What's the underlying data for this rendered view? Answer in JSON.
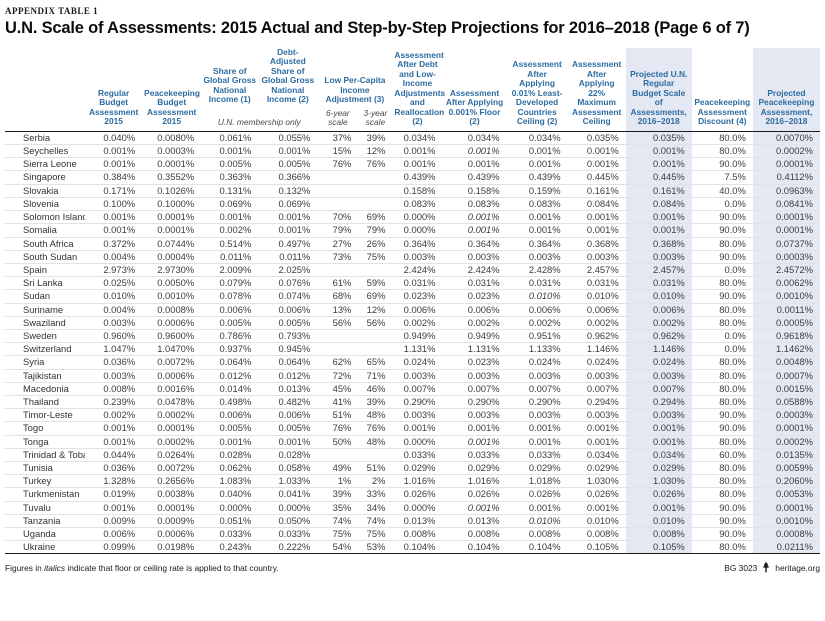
{
  "page": {
    "eyebrow": "APPENDIX TABLE 1",
    "title": "U.N. Scale of Assessments: 2015 Actual and Step-by-Step Projections for 2016–2018 (Page 6 of 7)",
    "footnote": {
      "pre": "Figures in ",
      "italic": "italics",
      "post": " indicate that floor or ceiling rate is applied to that country."
    },
    "footer_right": {
      "doc_id": "BG 3023",
      "site": "heritage.org"
    },
    "colors": {
      "header_blue": "#2d6ca2",
      "highlight_band": "#e4e8f2",
      "rule_black": "#1a1a1a",
      "row_divider": "#e2e2e2"
    }
  },
  "table": {
    "headers": [
      "",
      "Regular Budget Assessment 2015",
      "Peacekeeping Budget Assessment 2015",
      "Share of Global Gross National Income (1)",
      "Debt-Adjusted Share of Global Gross National Income (2)",
      "Low Per-Capita Income Adjustment (3)",
      "Assessment After Debt and Low-Income Adjustments and Reallocation (2)",
      "Assessment After Applying 0.001% Floor (2)",
      "Assessment After Applying 0.01% Least-Developed Countries Ceiling (2)",
      "Assessment After Applying 22% Maximum Assessment Ceiling",
      "Projected U.N. Regular Budget Scale of Assessments, 2016–2018",
      "Peacekeeping Assessment Discount (4)",
      "Projected Peacekeeping Assessment, 2016–2018"
    ],
    "subheaders": {
      "membership_note": "U.N. membership only",
      "six_year": "6-year scale",
      "three_year": "3-year scale"
    },
    "highlight_cols": [
      11,
      13
    ],
    "italic_cells": [
      [
        1,
        8
      ],
      [
        6,
        8
      ],
      [
        7,
        8
      ],
      [
        12,
        9
      ],
      [
        23,
        8
      ],
      [
        28,
        8
      ],
      [
        29,
        9
      ]
    ],
    "rows": [
      [
        "Serbia",
        "0.040%",
        "0.0080%",
        "0.061%",
        "0.055%",
        "37%",
        "39%",
        "0.034%",
        "0.034%",
        "0.034%",
        "0.035%",
        "0.035%",
        "80.0%",
        "0.0070%"
      ],
      [
        "Seychelles",
        "0.001%",
        "0.0003%",
        "0.001%",
        "0.001%",
        "15%",
        "12%",
        "0.001%",
        "0.001%",
        "0.001%",
        "0.001%",
        "0.001%",
        "80.0%",
        "0.0002%"
      ],
      [
        "Sierra Leone",
        "0.001%",
        "0.0001%",
        "0.005%",
        "0.005%",
        "76%",
        "76%",
        "0.001%",
        "0.001%",
        "0.001%",
        "0.001%",
        "0.001%",
        "90.0%",
        "0.0001%"
      ],
      [
        "Singapore",
        "0.384%",
        "0.3552%",
        "0.363%",
        "0.366%",
        "",
        "",
        "0.439%",
        "0.439%",
        "0.439%",
        "0.445%",
        "0.445%",
        "7.5%",
        "0.4112%"
      ],
      [
        "Slovakia",
        "0.171%",
        "0.1026%",
        "0.131%",
        "0.132%",
        "",
        "",
        "0.158%",
        "0.158%",
        "0.159%",
        "0.161%",
        "0.161%",
        "40.0%",
        "0.0963%"
      ],
      [
        "Slovenia",
        "0.100%",
        "0.1000%",
        "0.069%",
        "0.069%",
        "",
        "",
        "0.083%",
        "0.083%",
        "0.083%",
        "0.084%",
        "0.084%",
        "0.0%",
        "0.0841%"
      ],
      [
        "Solomon Islands",
        "0.001%",
        "0.0001%",
        "0.001%",
        "0.001%",
        "70%",
        "69%",
        "0.000%",
        "0.001%",
        "0.001%",
        "0.001%",
        "0.001%",
        "90.0%",
        "0.0001%"
      ],
      [
        "Somalia",
        "0.001%",
        "0.0001%",
        "0.002%",
        "0.001%",
        "79%",
        "79%",
        "0.000%",
        "0.001%",
        "0.001%",
        "0.001%",
        "0.001%",
        "90.0%",
        "0.0001%"
      ],
      [
        "South Africa",
        "0.372%",
        "0.0744%",
        "0.514%",
        "0.497%",
        "27%",
        "26%",
        "0.364%",
        "0.364%",
        "0.364%",
        "0.368%",
        "0.368%",
        "80.0%",
        "0.0737%"
      ],
      [
        "South Sudan",
        "0.004%",
        "0.0004%",
        "0.011%",
        "0.011%",
        "73%",
        "75%",
        "0.003%",
        "0.003%",
        "0.003%",
        "0.003%",
        "0.003%",
        "90.0%",
        "0.0003%"
      ],
      [
        "Spain",
        "2.973%",
        "2.9730%",
        "2.009%",
        "2.025%",
        "",
        "",
        "2.424%",
        "2.424%",
        "2.428%",
        "2.457%",
        "2.457%",
        "0.0%",
        "2.4572%"
      ],
      [
        "Sri Lanka",
        "0.025%",
        "0.0050%",
        "0.079%",
        "0.076%",
        "61%",
        "59%",
        "0.031%",
        "0.031%",
        "0.031%",
        "0.031%",
        "0.031%",
        "80.0%",
        "0.0062%"
      ],
      [
        "Sudan",
        "0.010%",
        "0.0010%",
        "0.078%",
        "0.074%",
        "68%",
        "69%",
        "0.023%",
        "0.023%",
        "0.010%",
        "0.010%",
        "0.010%",
        "90.0%",
        "0.0010%"
      ],
      [
        "Suriname",
        "0.004%",
        "0.0008%",
        "0.006%",
        "0.006%",
        "13%",
        "12%",
        "0.006%",
        "0.006%",
        "0.006%",
        "0.006%",
        "0.006%",
        "80.0%",
        "0.0011%"
      ],
      [
        "Swaziland",
        "0.003%",
        "0.0006%",
        "0.005%",
        "0.005%",
        "56%",
        "56%",
        "0.002%",
        "0.002%",
        "0.002%",
        "0.002%",
        "0.002%",
        "80.0%",
        "0.0005%"
      ],
      [
        "Sweden",
        "0.960%",
        "0.9600%",
        "0.786%",
        "0.793%",
        "",
        "",
        "0.949%",
        "0.949%",
        "0.951%",
        "0.962%",
        "0.962%",
        "0.0%",
        "0.9618%"
      ],
      [
        "Switzerland",
        "1.047%",
        "1.0470%",
        "0.937%",
        "0.945%",
        "",
        "",
        "1.131%",
        "1.131%",
        "1.133%",
        "1.146%",
        "1.146%",
        "0.0%",
        "1.1462%"
      ],
      [
        "Syria",
        "0.036%",
        "0.0072%",
        "0.064%",
        "0.064%",
        "62%",
        "65%",
        "0.024%",
        "0.023%",
        "0.024%",
        "0.024%",
        "0.024%",
        "80.0%",
        "0.0048%"
      ],
      [
        "Tajikistan",
        "0.003%",
        "0.0006%",
        "0.012%",
        "0.012%",
        "72%",
        "71%",
        "0.003%",
        "0.003%",
        "0.003%",
        "0.003%",
        "0.003%",
        "80.0%",
        "0.0007%"
      ],
      [
        "Macedonia",
        "0.008%",
        "0.0016%",
        "0.014%",
        "0.013%",
        "45%",
        "46%",
        "0.007%",
        "0.007%",
        "0.007%",
        "0.007%",
        "0.007%",
        "80.0%",
        "0.0015%"
      ],
      [
        "Thailand",
        "0.239%",
        "0.0478%",
        "0.498%",
        "0.482%",
        "41%",
        "39%",
        "0.290%",
        "0.290%",
        "0.290%",
        "0.294%",
        "0.294%",
        "80.0%",
        "0.0588%"
      ],
      [
        "Timor-Leste",
        "0.002%",
        "0.0002%",
        "0.006%",
        "0.006%",
        "51%",
        "48%",
        "0.003%",
        "0.003%",
        "0.003%",
        "0.003%",
        "0.003%",
        "90.0%",
        "0.0003%"
      ],
      [
        "Togo",
        "0.001%",
        "0.0001%",
        "0.005%",
        "0.005%",
        "76%",
        "76%",
        "0.001%",
        "0.001%",
        "0.001%",
        "0.001%",
        "0.001%",
        "90.0%",
        "0.0001%"
      ],
      [
        "Tonga",
        "0.001%",
        "0.0002%",
        "0.001%",
        "0.001%",
        "50%",
        "48%",
        "0.000%",
        "0.001%",
        "0.001%",
        "0.001%",
        "0.001%",
        "80.0%",
        "0.0002%"
      ],
      [
        "Trinidad & Tobago",
        "0.044%",
        "0.0264%",
        "0.028%",
        "0.028%",
        "",
        "",
        "0.033%",
        "0.033%",
        "0.033%",
        "0.034%",
        "0.034%",
        "60.0%",
        "0.0135%"
      ],
      [
        "Tunisia",
        "0.036%",
        "0.0072%",
        "0.062%",
        "0.058%",
        "49%",
        "51%",
        "0.029%",
        "0.029%",
        "0.029%",
        "0.029%",
        "0.029%",
        "80.0%",
        "0.0059%"
      ],
      [
        "Turkey",
        "1.328%",
        "0.2656%",
        "1.083%",
        "1.033%",
        "1%",
        "2%",
        "1.016%",
        "1.016%",
        "1.018%",
        "1.030%",
        "1.030%",
        "80.0%",
        "0.2060%"
      ],
      [
        "Turkmenistan",
        "0.019%",
        "0.0038%",
        "0.040%",
        "0.041%",
        "39%",
        "33%",
        "0.026%",
        "0.026%",
        "0.026%",
        "0.026%",
        "0.026%",
        "80.0%",
        "0.0053%"
      ],
      [
        "Tuvalu",
        "0.001%",
        "0.0001%",
        "0.000%",
        "0.000%",
        "35%",
        "34%",
        "0.000%",
        "0.001%",
        "0.001%",
        "0.001%",
        "0.001%",
        "90.0%",
        "0.0001%"
      ],
      [
        "Tanzania",
        "0.009%",
        "0.0009%",
        "0.051%",
        "0.050%",
        "74%",
        "74%",
        "0.013%",
        "0.013%",
        "0.010%",
        "0.010%",
        "0.010%",
        "90.0%",
        "0.0010%"
      ],
      [
        "Uganda",
        "0.006%",
        "0.0006%",
        "0.033%",
        "0.033%",
        "75%",
        "75%",
        "0.008%",
        "0.008%",
        "0.008%",
        "0.008%",
        "0.008%",
        "90.0%",
        "0.0008%"
      ],
      [
        "Ukraine",
        "0.099%",
        "0.0198%",
        "0.243%",
        "0.222%",
        "54%",
        "53%",
        "0.104%",
        "0.104%",
        "0.104%",
        "0.105%",
        "0.105%",
        "80.0%",
        "0.0211%"
      ]
    ]
  }
}
